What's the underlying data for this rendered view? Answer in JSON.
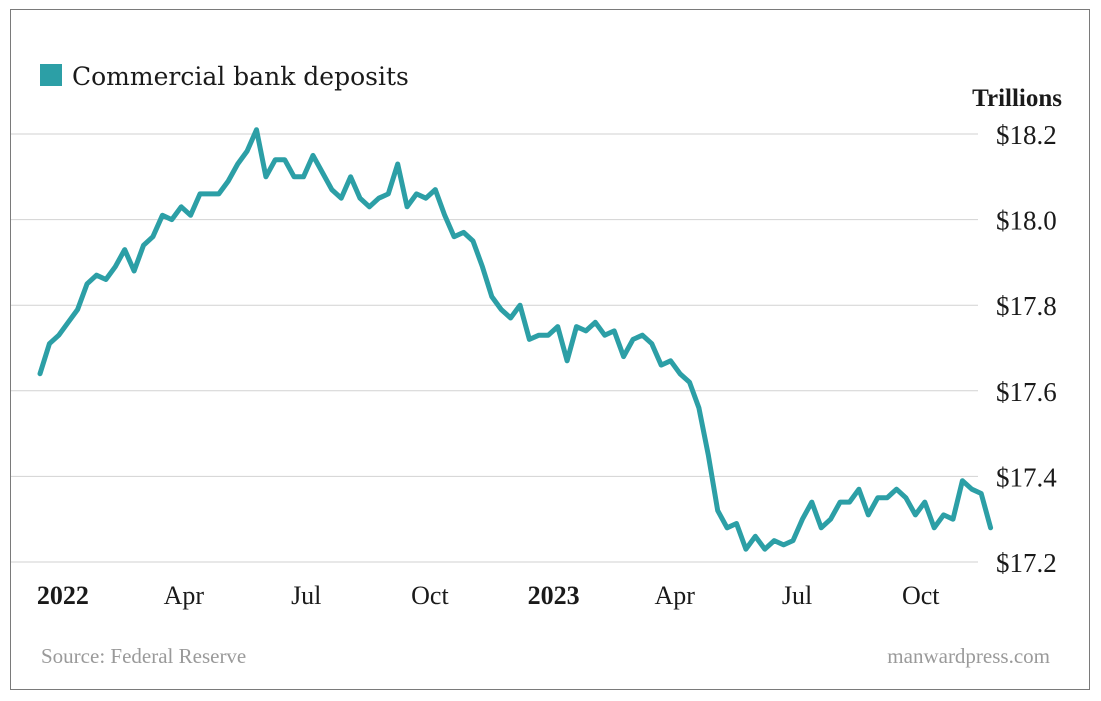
{
  "chart_data": {
    "type": "line",
    "legend": [
      {
        "label": "Commercial bank deposits",
        "color": "#2c9fa6"
      }
    ],
    "legend_position": "top-left",
    "unit_label": "Trillions",
    "ylim": [
      17.2,
      18.2
    ],
    "yticks": [
      {
        "value": 18.2,
        "label": "$18.2"
      },
      {
        "value": 18.0,
        "label": "$18.0"
      },
      {
        "value": 17.8,
        "label": "$17.8"
      },
      {
        "value": 17.6,
        "label": "$17.6"
      },
      {
        "value": 17.4,
        "label": "$17.4"
      },
      {
        "value": 17.2,
        "label": "$17.2"
      }
    ],
    "grid": "horizontal",
    "xlim": [
      "2021-12-15",
      "2023-10-25"
    ],
    "xticks": [
      {
        "date": "2022-01-01",
        "label": "2022",
        "year": true
      },
      {
        "date": "2022-04-01",
        "label": "Apr",
        "year": false
      },
      {
        "date": "2022-07-01",
        "label": "Jul",
        "year": false
      },
      {
        "date": "2022-10-01",
        "label": "Oct",
        "year": false
      },
      {
        "date": "2023-01-01",
        "label": "2023",
        "year": true
      },
      {
        "date": "2023-04-01",
        "label": "Apr",
        "year": false
      },
      {
        "date": "2023-07-01",
        "label": "Jul",
        "year": false
      },
      {
        "date": "2023-10-01",
        "label": "Oct",
        "year": false
      }
    ],
    "series": [
      {
        "name": "Commercial bank deposits",
        "color": "#2c9fa6",
        "points": [
          [
            "2021-12-15",
            17.64
          ],
          [
            "2021-12-22",
            17.71
          ],
          [
            "2021-12-29",
            17.73
          ],
          [
            "2022-01-05",
            17.76
          ],
          [
            "2022-01-12",
            17.79
          ],
          [
            "2022-01-19",
            17.85
          ],
          [
            "2022-01-26",
            17.87
          ],
          [
            "2022-02-02",
            17.86
          ],
          [
            "2022-02-09",
            17.89
          ],
          [
            "2022-02-16",
            17.93
          ],
          [
            "2022-02-23",
            17.88
          ],
          [
            "2022-03-02",
            17.94
          ],
          [
            "2022-03-09",
            17.96
          ],
          [
            "2022-03-16",
            18.01
          ],
          [
            "2022-03-23",
            18.0
          ],
          [
            "2022-03-30",
            18.03
          ],
          [
            "2022-04-06",
            18.01
          ],
          [
            "2022-04-13",
            18.06
          ],
          [
            "2022-04-20",
            18.06
          ],
          [
            "2022-04-27",
            18.06
          ],
          [
            "2022-05-04",
            18.09
          ],
          [
            "2022-05-11",
            18.13
          ],
          [
            "2022-05-18",
            18.16
          ],
          [
            "2022-05-25",
            18.21
          ],
          [
            "2022-06-01",
            18.1
          ],
          [
            "2022-06-08",
            18.14
          ],
          [
            "2022-06-15",
            18.14
          ],
          [
            "2022-06-22",
            18.1
          ],
          [
            "2022-06-29",
            18.1
          ],
          [
            "2022-07-06",
            18.15
          ],
          [
            "2022-07-13",
            18.11
          ],
          [
            "2022-07-20",
            18.07
          ],
          [
            "2022-07-27",
            18.05
          ],
          [
            "2022-08-03",
            18.1
          ],
          [
            "2022-08-10",
            18.05
          ],
          [
            "2022-08-17",
            18.03
          ],
          [
            "2022-08-24",
            18.05
          ],
          [
            "2022-08-31",
            18.06
          ],
          [
            "2022-09-07",
            18.13
          ],
          [
            "2022-09-14",
            18.03
          ],
          [
            "2022-09-21",
            18.06
          ],
          [
            "2022-09-28",
            18.05
          ],
          [
            "2022-10-05",
            18.07
          ],
          [
            "2022-10-12",
            18.01
          ],
          [
            "2022-10-19",
            17.96
          ],
          [
            "2022-10-26",
            17.97
          ],
          [
            "2022-11-02",
            17.95
          ],
          [
            "2022-11-09",
            17.89
          ],
          [
            "2022-11-16",
            17.82
          ],
          [
            "2022-11-23",
            17.79
          ],
          [
            "2022-11-30",
            17.77
          ],
          [
            "2022-12-07",
            17.8
          ],
          [
            "2022-12-14",
            17.72
          ],
          [
            "2022-12-21",
            17.73
          ],
          [
            "2022-12-28",
            17.73
          ],
          [
            "2023-01-04",
            17.75
          ],
          [
            "2023-01-11",
            17.67
          ],
          [
            "2023-01-18",
            17.75
          ],
          [
            "2023-01-25",
            17.74
          ],
          [
            "2023-02-01",
            17.76
          ],
          [
            "2023-02-08",
            17.73
          ],
          [
            "2023-02-15",
            17.74
          ],
          [
            "2023-02-22",
            17.68
          ],
          [
            "2023-03-01",
            17.72
          ],
          [
            "2023-03-08",
            17.73
          ],
          [
            "2023-03-15",
            17.71
          ],
          [
            "2023-03-22",
            17.66
          ],
          [
            "2023-03-29",
            17.67
          ],
          [
            "2023-04-05",
            17.64
          ],
          [
            "2023-04-12",
            17.62
          ],
          [
            "2023-04-19",
            17.56
          ],
          [
            "2023-04-26",
            17.45
          ],
          [
            "2023-05-03",
            17.32
          ],
          [
            "2023-05-10",
            17.28
          ],
          [
            "2023-05-17",
            17.29
          ],
          [
            "2023-05-24",
            17.23
          ],
          [
            "2023-05-31",
            17.26
          ],
          [
            "2023-06-07",
            17.23
          ],
          [
            "2023-06-14",
            17.25
          ],
          [
            "2023-06-21",
            17.24
          ],
          [
            "2023-06-28",
            17.25
          ],
          [
            "2023-07-05",
            17.3
          ],
          [
            "2023-07-12",
            17.34
          ],
          [
            "2023-07-19",
            17.28
          ],
          [
            "2023-07-26",
            17.3
          ],
          [
            "2023-08-02",
            17.34
          ],
          [
            "2023-08-09",
            17.34
          ],
          [
            "2023-08-16",
            17.37
          ],
          [
            "2023-08-23",
            17.31
          ],
          [
            "2023-08-30",
            17.35
          ],
          [
            "2023-09-06",
            17.35
          ],
          [
            "2023-09-13",
            17.37
          ],
          [
            "2023-09-20",
            17.35
          ],
          [
            "2023-09-27",
            17.31
          ],
          [
            "2023-10-04",
            17.34
          ],
          [
            "2023-10-11",
            17.28
          ],
          [
            "2023-10-18",
            17.31
          ],
          [
            "2023-10-25",
            17.3
          ],
          [
            "2023-11-01",
            17.39
          ],
          [
            "2023-11-08",
            17.37
          ],
          [
            "2023-11-15",
            17.36
          ],
          [
            "2023-11-22",
            17.28
          ]
        ]
      }
    ]
  },
  "footer": {
    "source": "Source: Federal Reserve",
    "site": "manwardpress.com"
  }
}
